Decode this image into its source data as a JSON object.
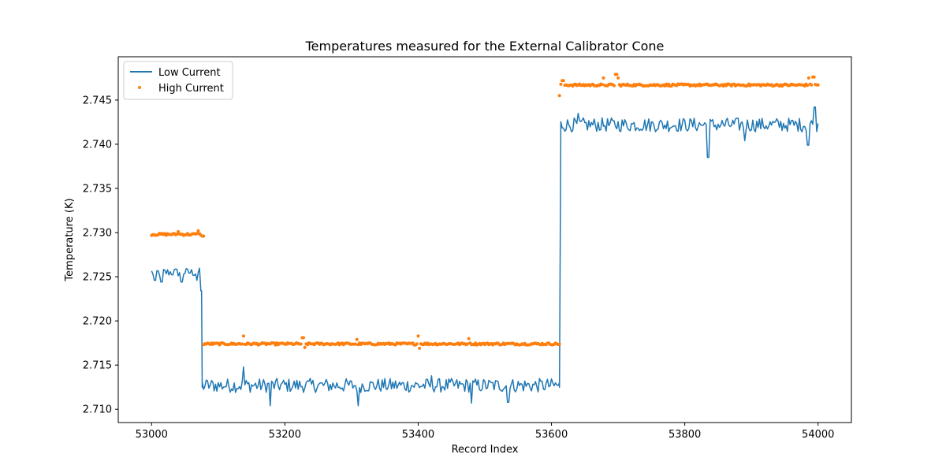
{
  "chart_data": {
    "type": "line+scatter",
    "title": "Temperatures measured for the External Calibrator Cone",
    "xlabel": "Record Index",
    "ylabel": "Temperature (K)",
    "xlim": [
      52950,
      54050
    ],
    "ylim": [
      2.7085,
      2.7499
    ],
    "xticks": [
      53000,
      53200,
      53400,
      53600,
      53800,
      54000
    ],
    "xtick_labels": [
      "53000",
      "53200",
      "53400",
      "53600",
      "53800",
      "54000"
    ],
    "yticks": [
      2.71,
      2.715,
      2.72,
      2.725,
      2.73,
      2.735,
      2.74,
      2.745
    ],
    "ytick_labels": [
      "2.710",
      "2.715",
      "2.720",
      "2.725",
      "2.730",
      "2.735",
      "2.740",
      "2.745"
    ],
    "legend_position": "top-left",
    "series": [
      {
        "name": "Low Current",
        "kind": "line",
        "color": "#1f77b4",
        "segments": [
          {
            "x_start": 53000,
            "x_end": 53075,
            "level": 2.7255,
            "noise": 0.0005,
            "spikes": [
              [
                53005,
                2.7246
              ],
              [
                53015,
                2.7244
              ],
              [
                53045,
                2.7244
              ],
              [
                53068,
                2.7246
              ],
              [
                53074,
                2.7234
              ]
            ]
          },
          {
            "x_start": 53076,
            "x_end": 53612,
            "level": 2.7127,
            "noise": 0.0008,
            "spikes": [
              [
                53138,
                2.7148
              ],
              [
                53178,
                2.7104
              ],
              [
                53310,
                2.7104
              ],
              [
                53535,
                2.7108
              ],
              [
                53420,
                2.7138
              ],
              [
                53480,
                2.7107
              ]
            ]
          },
          {
            "x_start": 53614,
            "x_end": 54000,
            "level": 2.7422,
            "noise": 0.0008,
            "spikes": [
              [
                53835,
                2.7385
              ],
              [
                53890,
                2.7404
              ],
              [
                53985,
                2.7399
              ],
              [
                53995,
                2.7442
              ],
              [
                53640,
                2.7435
              ]
            ]
          }
        ],
        "transitions": [
          [
            53075,
            2.7234
          ],
          [
            53076,
            2.7125
          ],
          [
            53612,
            2.7125
          ],
          [
            53614,
            2.742
          ]
        ]
      },
      {
        "name": "High Current",
        "kind": "scatter",
        "color": "#ff7f0e",
        "segments": [
          {
            "x_start": 53000,
            "x_end": 53078,
            "level": 2.7298,
            "noise": 0.00012,
            "spikes": [
              [
                53040,
                2.7301
              ],
              [
                53070,
                2.7302
              ],
              [
                53077,
                2.7296
              ]
            ]
          },
          {
            "x_start": 53078,
            "x_end": 53612,
            "level": 2.7174,
            "noise": 0.00012,
            "spikes": [
              [
                53138,
                2.7183
              ],
              [
                53227,
                2.7181
              ],
              [
                53230,
                2.717
              ],
              [
                53308,
                2.7179
              ],
              [
                53400,
                2.7183
              ],
              [
                53402,
                2.7169
              ],
              [
                53476,
                2.718
              ]
            ]
          },
          {
            "x_start": 53612,
            "x_end": 54000,
            "level": 2.7467,
            "noise": 0.00012,
            "spikes": [
              [
                53612,
                2.7455
              ],
              [
                53617,
                2.7472
              ],
              [
                53678,
                2.7475
              ],
              [
                53697,
                2.7479
              ],
              [
                53700,
                2.7475
              ],
              [
                53986,
                2.7475
              ],
              [
                53993,
                2.7476
              ]
            ]
          }
        ]
      }
    ]
  }
}
